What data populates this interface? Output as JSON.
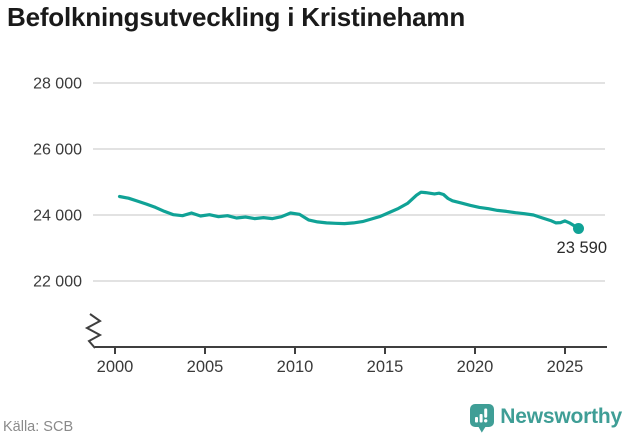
{
  "header": {
    "title": "Befolkningsutveckling i Kristinehamn"
  },
  "footer": {
    "source": "Källa: SCB",
    "brand": "Newsworthy"
  },
  "colors": {
    "line": "#10a296",
    "logo": "#3f9e96",
    "grid": "#e2e2e2",
    "axis": "#3f3f3f",
    "tick_text": "#3a3a3a",
    "title": "#1a1a1a",
    "muted": "#8a8a8a",
    "end_label": "#2b2b2b"
  },
  "chart_data": {
    "type": "line",
    "title": "Befolkningsutveckling i Kristinehamn",
    "xlabel": "",
    "ylabel": "",
    "source": "Källa: SCB",
    "grid": "horizontal",
    "legend": "none",
    "axis_break_bottom_left": true,
    "x_range": [
      2000,
      2027.3
    ],
    "ylim": [
      21500,
      28500
    ],
    "yticks": [
      {
        "value": 22000,
        "label": "22 000"
      },
      {
        "value": 24000,
        "label": "24 000"
      },
      {
        "value": 26000,
        "label": "26 000"
      },
      {
        "value": 28000,
        "label": "28 000"
      }
    ],
    "xticks": [
      {
        "value": 2000,
        "label": "2000"
      },
      {
        "value": 2005,
        "label": "2005"
      },
      {
        "value": 2010,
        "label": "2010"
      },
      {
        "value": 2015,
        "label": "2015"
      },
      {
        "value": 2020,
        "label": "2020"
      },
      {
        "value": 2025,
        "label": "2025"
      }
    ],
    "end_label": "23 590",
    "end_value": 23590,
    "series": [
      {
        "points": [
          [
            2000.25,
            24560
          ],
          [
            2000.75,
            24510
          ],
          [
            2001.25,
            24420
          ],
          [
            2001.75,
            24330
          ],
          [
            2002.25,
            24230
          ],
          [
            2002.75,
            24110
          ],
          [
            2003.25,
            24010
          ],
          [
            2003.75,
            23980
          ],
          [
            2004.25,
            24060
          ],
          [
            2004.75,
            23970
          ],
          [
            2005.25,
            24010
          ],
          [
            2005.75,
            23950
          ],
          [
            2006.25,
            23980
          ],
          [
            2006.75,
            23910
          ],
          [
            2007.25,
            23940
          ],
          [
            2007.75,
            23890
          ],
          [
            2008.25,
            23920
          ],
          [
            2008.75,
            23890
          ],
          [
            2009.25,
            23950
          ],
          [
            2009.75,
            24060
          ],
          [
            2010.25,
            24020
          ],
          [
            2010.75,
            23850
          ],
          [
            2011.25,
            23790
          ],
          [
            2011.75,
            23760
          ],
          [
            2012.25,
            23750
          ],
          [
            2012.75,
            23740
          ],
          [
            2013.25,
            23760
          ],
          [
            2013.75,
            23800
          ],
          [
            2014.25,
            23880
          ],
          [
            2014.75,
            23960
          ],
          [
            2015.25,
            24080
          ],
          [
            2015.75,
            24200
          ],
          [
            2016.25,
            24350
          ],
          [
            2016.75,
            24600
          ],
          [
            2017.0,
            24690
          ],
          [
            2017.25,
            24680
          ],
          [
            2017.75,
            24640
          ],
          [
            2018.0,
            24660
          ],
          [
            2018.25,
            24620
          ],
          [
            2018.5,
            24500
          ],
          [
            2018.75,
            24430
          ],
          [
            2019.25,
            24360
          ],
          [
            2019.75,
            24290
          ],
          [
            2020.25,
            24230
          ],
          [
            2020.75,
            24190
          ],
          [
            2021.25,
            24140
          ],
          [
            2021.75,
            24110
          ],
          [
            2022.25,
            24070
          ],
          [
            2022.75,
            24040
          ],
          [
            2023.25,
            24000
          ],
          [
            2023.75,
            23910
          ],
          [
            2024.25,
            23820
          ],
          [
            2024.5,
            23760
          ],
          [
            2024.75,
            23770
          ],
          [
            2025.0,
            23820
          ],
          [
            2025.25,
            23760
          ],
          [
            2025.5,
            23680
          ],
          [
            2025.75,
            23590
          ]
        ]
      }
    ]
  }
}
